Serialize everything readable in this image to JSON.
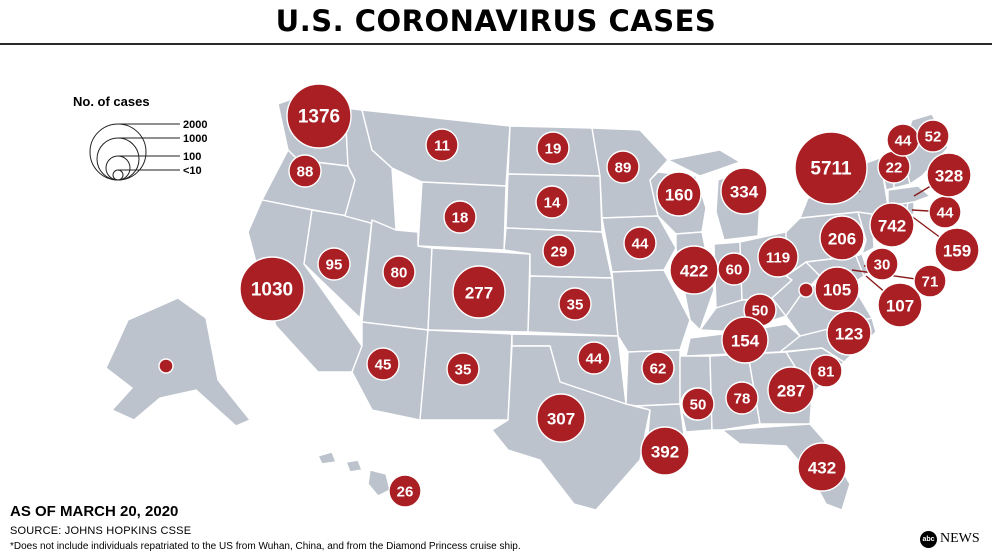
{
  "title": "U.S. CORONAVIRUS CASES",
  "legend": {
    "title": "No. of cases",
    "levels": [
      "2000",
      "1000",
      "100",
      "<10"
    ]
  },
  "as_of": "AS OF MARCH 20, 2020",
  "source": "SOURCE: JOHNS HOPKINS CSSE",
  "footnote": "*Does not include individuals repatriated to the US from Wuhan, China, and from the Diamond Princess cruise ship.",
  "brand": {
    "logo": "abc",
    "name": "NEWS"
  },
  "colors": {
    "bubble": "#a91f24",
    "land": "#bcc3cd",
    "title_rule": "#2a2a2a"
  },
  "cases": [
    {
      "state": "WA",
      "value": "1376"
    },
    {
      "state": "OR",
      "value": "88"
    },
    {
      "state": "CA",
      "value": "1030"
    },
    {
      "state": "NV",
      "value": "95"
    },
    {
      "state": "ID",
      "value": "18"
    },
    {
      "state": "MT",
      "value": "11"
    },
    {
      "state": "UT",
      "value": "80"
    },
    {
      "state": "CO",
      "value": "277"
    },
    {
      "state": "AZ",
      "value": "45"
    },
    {
      "state": "NM",
      "value": "35"
    },
    {
      "state": "ND",
      "value": "19"
    },
    {
      "state": "SD",
      "value": "14"
    },
    {
      "state": "NE",
      "value": "29"
    },
    {
      "state": "KS",
      "value": "35"
    },
    {
      "state": "OK",
      "value": "44"
    },
    {
      "state": "TX",
      "value": "307"
    },
    {
      "state": "MN",
      "value": "89"
    },
    {
      "state": "IA",
      "value": "44"
    },
    {
      "state": "MO",
      "value": "62"
    },
    {
      "state": "AR",
      "value": "50"
    },
    {
      "state": "LA",
      "value": "392"
    },
    {
      "state": "WI",
      "value": "160"
    },
    {
      "state": "IL",
      "value": "422"
    },
    {
      "state": "MI",
      "value": "334"
    },
    {
      "state": "IN",
      "value": "60"
    },
    {
      "state": "OH",
      "value": "119"
    },
    {
      "state": "KY",
      "value": "50"
    },
    {
      "state": "TN",
      "value": "154"
    },
    {
      "state": "MS",
      "value": "50"
    },
    {
      "state": "AL",
      "value": "78"
    },
    {
      "state": "GA",
      "value": "287"
    },
    {
      "state": "FL",
      "value": "432"
    },
    {
      "state": "SC",
      "value": "81"
    },
    {
      "state": "NC",
      "value": "123"
    },
    {
      "state": "VA",
      "value": "105"
    },
    {
      "state": "WV",
      "value": ""
    },
    {
      "state": "PA",
      "value": "206"
    },
    {
      "state": "NY",
      "value": "5711"
    },
    {
      "state": "NJ",
      "value": "742"
    },
    {
      "state": "DE",
      "value": "30"
    },
    {
      "state": "MD",
      "value": "107"
    },
    {
      "state": "DC",
      "value": "71"
    },
    {
      "state": "CT",
      "value": "159"
    },
    {
      "state": "RI",
      "value": "44"
    },
    {
      "state": "MA",
      "value": "328"
    },
    {
      "state": "VT",
      "value": "22"
    },
    {
      "state": "NH",
      "value": "44"
    },
    {
      "state": "ME",
      "value": "52"
    },
    {
      "state": "AK",
      "value": ""
    },
    {
      "state": "HI",
      "value": "26"
    }
  ]
}
